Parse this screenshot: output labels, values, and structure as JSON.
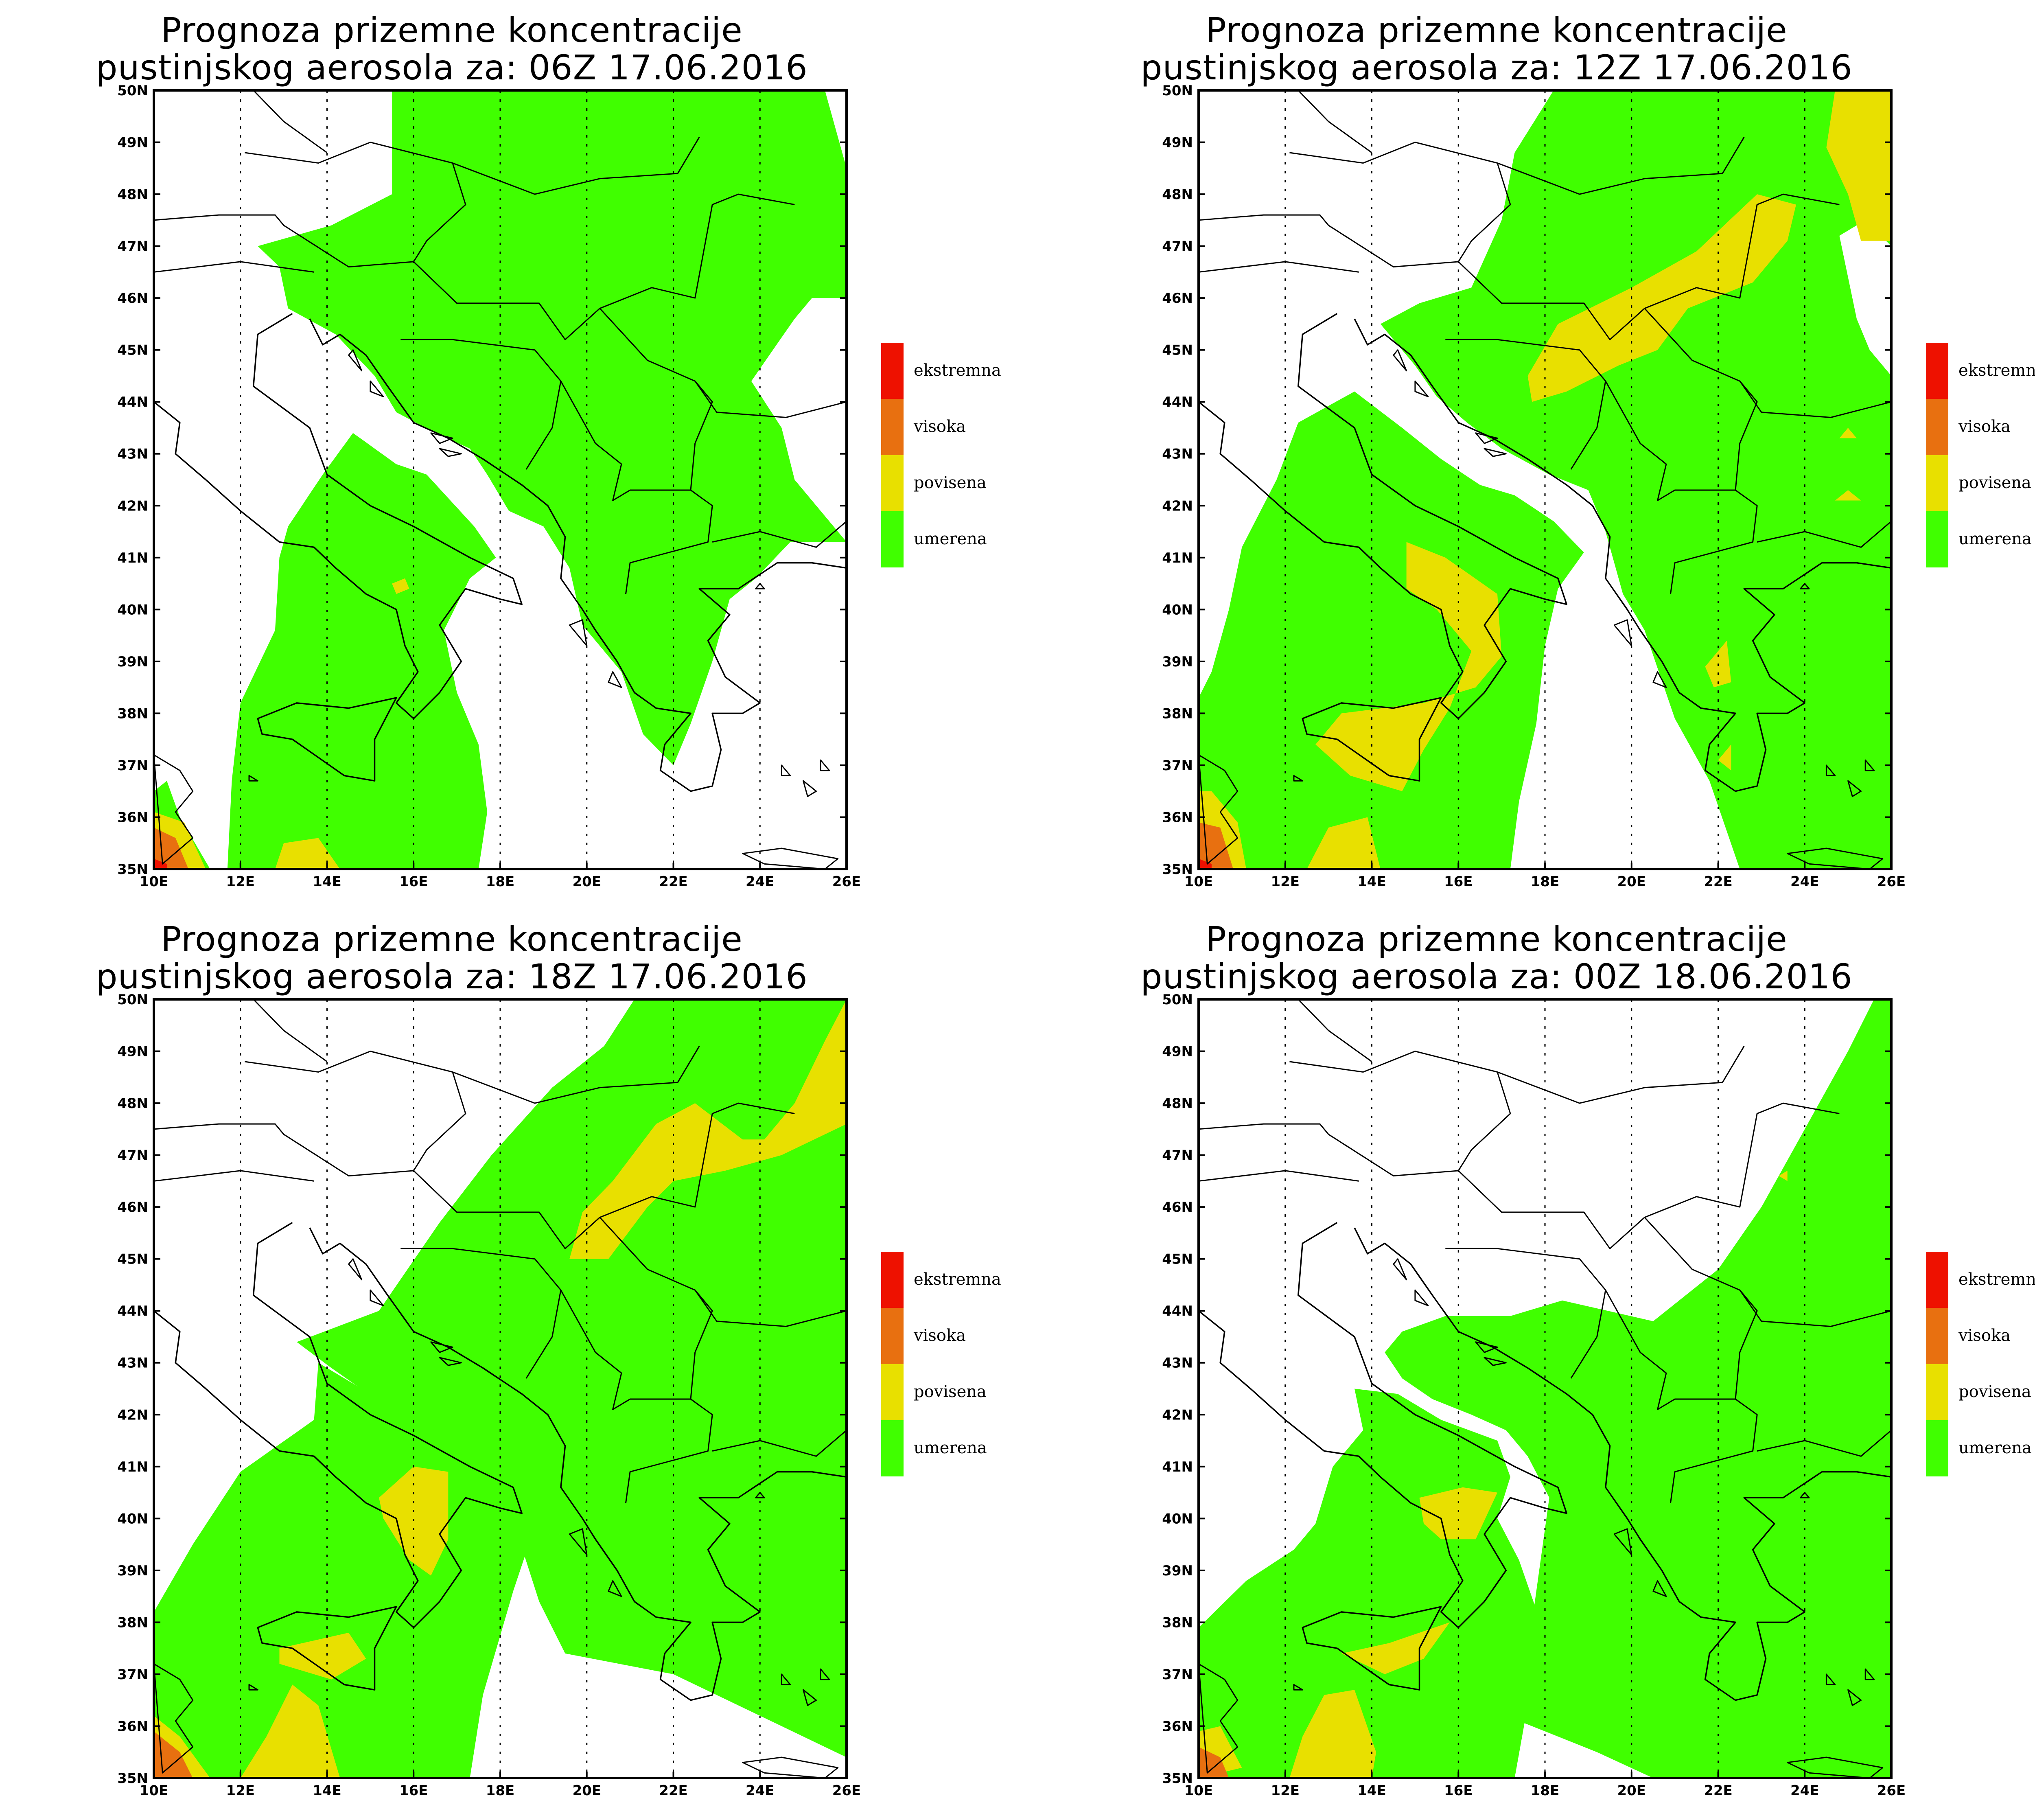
{
  "legend": {
    "items": [
      {
        "label": "ekstremna",
        "color": "#ee1100"
      },
      {
        "label": "visoka",
        "color": "#e87010"
      },
      {
        "label": "povisena",
        "color": "#e8e000"
      },
      {
        "label": "umerena",
        "color": "#40ff00"
      }
    ]
  },
  "axes": {
    "lat_labels": [
      "50N",
      "49N",
      "48N",
      "47N",
      "46N",
      "45N",
      "44N",
      "43N",
      "42N",
      "41N",
      "40N",
      "39N",
      "38N",
      "37N",
      "36N",
      "35N"
    ],
    "lon_labels": [
      "10E",
      "12E",
      "14E",
      "16E",
      "18E",
      "20E",
      "22E",
      "24E",
      "26E"
    ],
    "lat_range": [
      35,
      50
    ],
    "lon_range": [
      10,
      26
    ]
  },
  "panels": [
    {
      "title_line1": "Prognoza prizemne koncentracije",
      "title_line2": "pustinjskog aerosola za: 06Z 17.06.2016"
    },
    {
      "title_line1": "Prognoza prizemne koncentracije",
      "title_line2": "pustinjskog aerosola za: 12Z 17.06.2016"
    },
    {
      "title_line1": "Prognoza prizemne koncentracije",
      "title_line2": "pustinjskog aerosola za: 18Z 17.06.2016"
    },
    {
      "title_line1": "Prognoza prizemne koncentracije",
      "title_line2": "pustinjskog aerosola za: 00Z 18.06.2016"
    }
  ]
}
